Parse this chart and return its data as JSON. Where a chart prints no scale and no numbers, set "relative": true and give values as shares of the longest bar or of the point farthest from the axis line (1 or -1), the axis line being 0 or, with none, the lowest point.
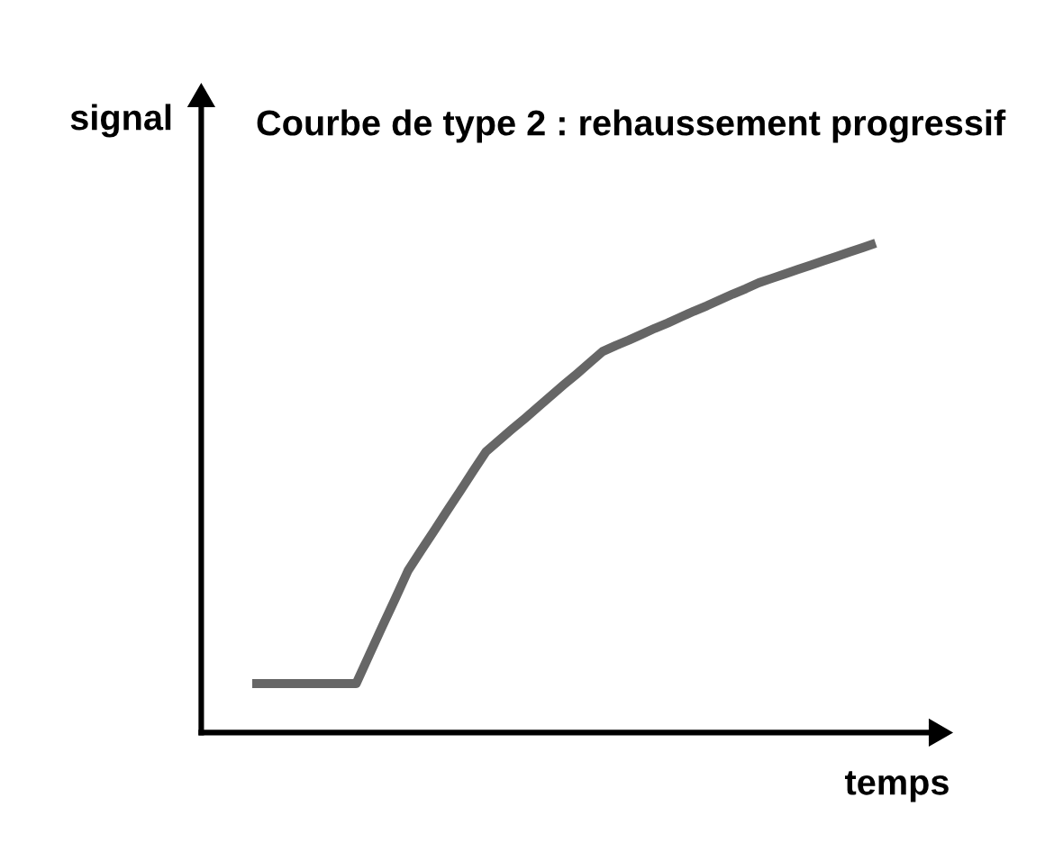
{
  "chart_data": {
    "type": "line",
    "title": "Courbe de type 2 : rehaussement progressif",
    "xlabel": "temps",
    "ylabel": "signal",
    "relative": true,
    "categories": [
      null,
      null,
      null,
      null,
      null,
      null,
      null,
      null,
      null,
      null,
      null,
      null,
      null,
      null,
      null,
      null,
      null,
      null,
      null,
      null,
      null,
      null,
      null,
      null,
      null,
      null,
      null,
      null,
      null,
      null,
      null,
      null,
      null,
      null,
      null,
      null,
      null,
      null,
      null,
      null,
      null,
      null,
      null,
      null,
      null,
      null,
      null,
      null,
      null
    ],
    "series": [
      {
        "color": "#666666",
        "values": [
          0.1,
          0.1,
          0.1,
          0.1,
          0.1,
          0.1,
          0.1,
          0.1,
          0.1,
          0.158,
          0.216,
          0.273,
          0.331,
          0.372,
          0.412,
          0.453,
          0.493,
          0.534,
          0.574,
          0.597,
          0.62,
          0.642,
          0.665,
          0.688,
          0.711,
          0.733,
          0.756,
          0.779,
          0.791,
          0.802,
          0.814,
          0.826,
          0.837,
          0.849,
          0.861,
          0.872,
          0.884,
          0.896,
          0.907,
          0.919,
          0.928,
          0.937,
          0.946,
          0.955,
          0.964,
          0.973,
          0.982,
          0.991,
          1.0
        ]
      }
    ]
  }
}
